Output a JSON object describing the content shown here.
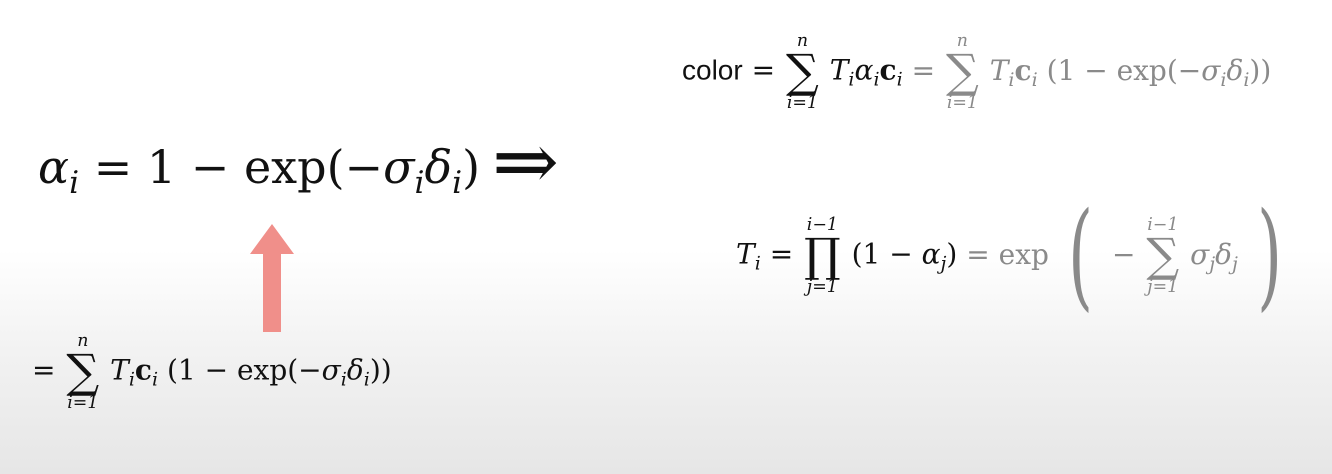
{
  "formulas": {
    "alpha": {
      "lhs_symbol": "α",
      "lhs_sub": "i",
      "equals": "=",
      "one": "1",
      "minus": "−",
      "exp_open": "exp(−",
      "sigma": "σ",
      "sigma_sub": "i",
      "delta": "δ",
      "delta_sub": "i",
      "close": ")"
    },
    "implies": "⇒",
    "sum_below": {
      "equals": "=",
      "sum_upper": "n",
      "sum_lower": "i=1",
      "sum_symbol": "∑",
      "T": "T",
      "T_sub": "i",
      "c": "c",
      "c_sub": "i",
      "rest_open": "(1 − exp(−",
      "sigma": "σ",
      "sigma_sub": "i",
      "delta": "δ",
      "delta_sub": "i",
      "rest_close": "))"
    },
    "color_eq": {
      "word": "color",
      "equals": "=",
      "sum_upper": "n",
      "sum_lower": "i=1",
      "sum_symbol": "∑",
      "T": "T",
      "T_sub": "i",
      "alpha": "α",
      "alpha_sub": "i",
      "c": "c",
      "c_sub": "i",
      "equals2": "=",
      "sum2_upper": "n",
      "sum2_lower": "i=1",
      "T2": "T",
      "T2_sub": "i",
      "c2": "c",
      "c2_sub": "i",
      "rest_open": "(1 − exp(−",
      "sigma": "σ",
      "sigma_sub": "i",
      "delta": "δ",
      "delta_sub": "i",
      "rest_close": "))"
    },
    "transmittance": {
      "T": "T",
      "T_sub": "i",
      "equals": "=",
      "prod_upper": "i−1",
      "prod_lower": "j=1",
      "prod_symbol": "∏",
      "open": "(1 − ",
      "alpha": "α",
      "alpha_sub": "j",
      "close": ")",
      "equals2": "= exp",
      "minus": "−",
      "sum_upper": "i−1",
      "sum_lower": "j=1",
      "sum_symbol": "∑",
      "sigma": "σ",
      "sigma_sub": "j",
      "delta": "δ",
      "delta_sub": "j"
    }
  },
  "colors": {
    "arrow": "#f08f8a",
    "text": "#111111",
    "gray_text": "#8a8a8a"
  }
}
